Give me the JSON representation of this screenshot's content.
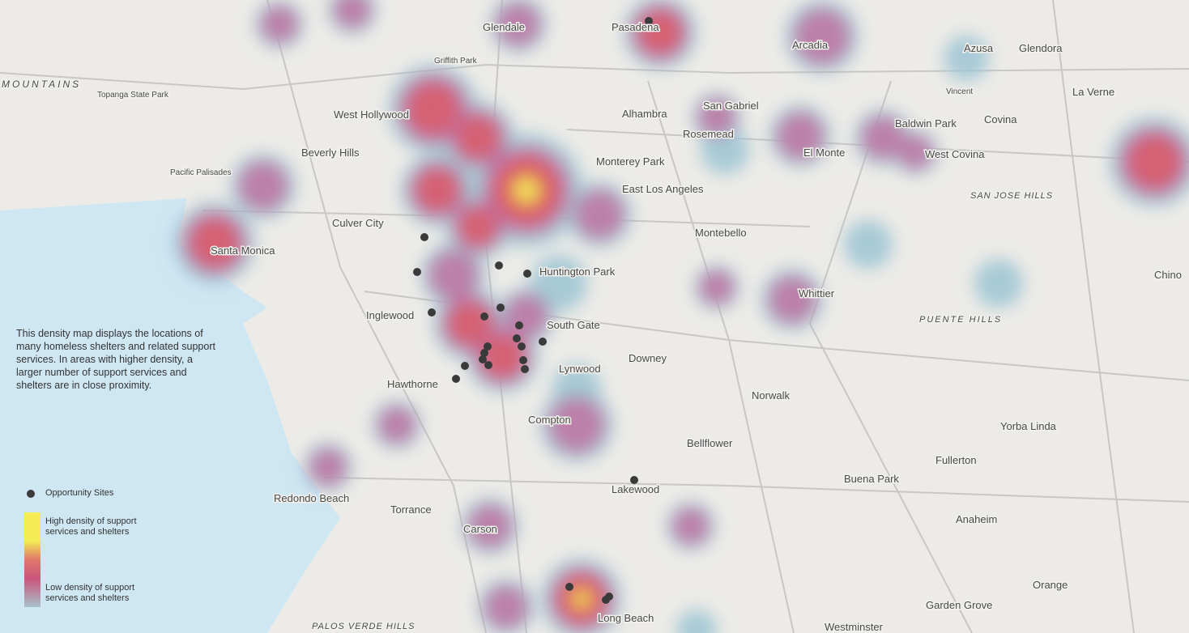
{
  "description": "This density map displays the locations of many homeless shelters and related support services. In areas with higher density, a larger number of support services and shelters are in close proximity.",
  "legend": {
    "sites": "Opportunity Sites",
    "high": "High density of support services and shelters",
    "low": "Low density of support services and shelters"
  },
  "places": [
    "Glendale",
    "Pasadena",
    "Arcadia",
    "Azusa",
    "Glendora",
    "West Hollywood",
    "Alhambra",
    "San Gabriel",
    "Rosemead",
    "Baldwin Park",
    "Covina",
    "La Verne",
    "Beverly Hills",
    "Monterey Park",
    "El Monte",
    "West Covina",
    "East Los Angeles",
    "Culver City",
    "Santa Monica",
    "Montebello",
    "Huntington Park",
    "Inglewood",
    "South Gate",
    "Downey",
    "Hawthorne",
    "Lynwood",
    "Compton",
    "Norwalk",
    "Bellflower",
    "Yorba Linda",
    "Fullerton",
    "Lakewood",
    "Buena Park",
    "Redondo Beach",
    "Torrance",
    "Carson",
    "Anaheim",
    "Orange",
    "Garden Grove",
    "Long Beach",
    "Whittier",
    "Chino",
    "Westminster",
    "Pacific Palisades",
    "Topanga State Park",
    "Griffith Park",
    "MOUNTAINS",
    "SAN JOSE HILLS",
    "PUENTE HILLS",
    "PALOS VERDE HILLS",
    "Vincent",
    "Vincent"
  ]
}
